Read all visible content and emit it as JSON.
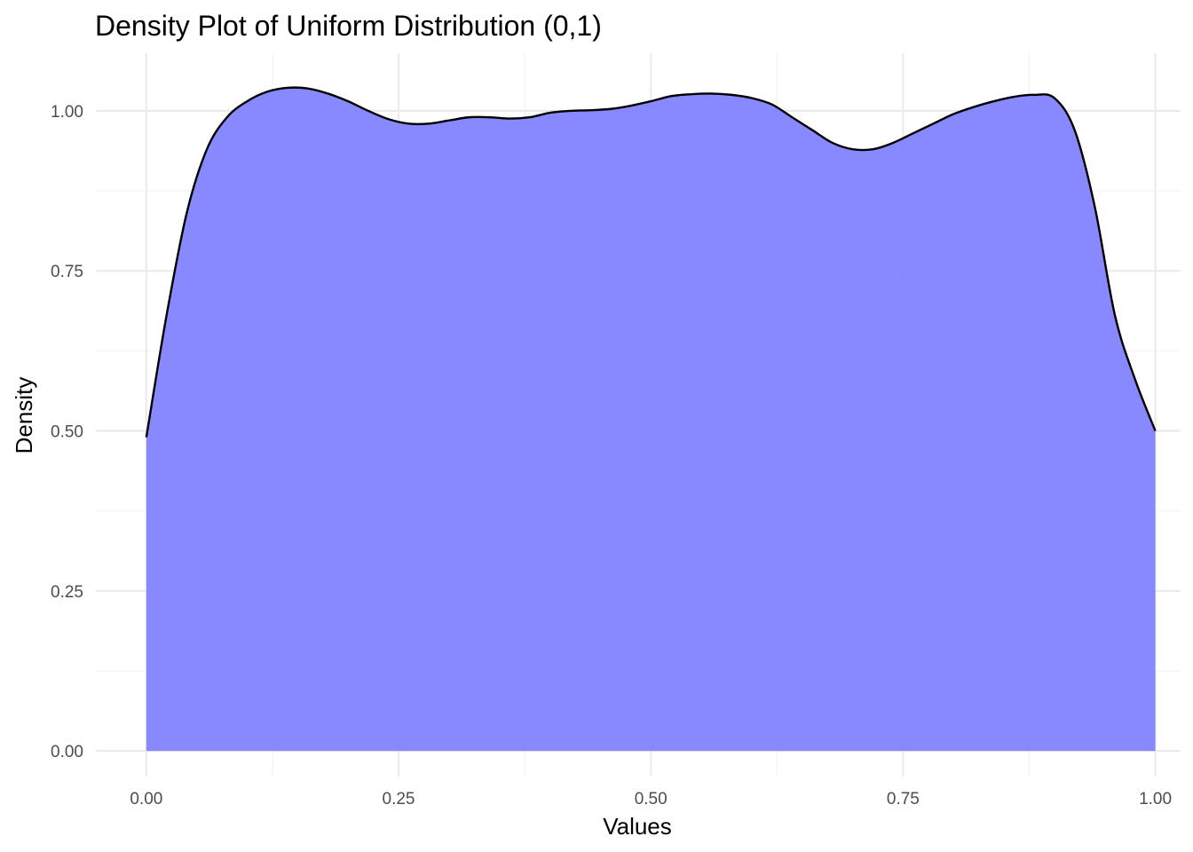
{
  "chart_data": {
    "type": "area",
    "title": "Density Plot of Uniform Distribution (0,1)",
    "xlabel": "Values",
    "ylabel": "Density",
    "xlim": [
      -0.05,
      1.025
    ],
    "ylim": [
      -0.04,
      1.09
    ],
    "x_ticks": [
      0,
      0.25,
      0.5,
      0.75,
      1
    ],
    "x_tick_labels": [
      "0.00",
      "0.25",
      "0.50",
      "0.75",
      "1.00"
    ],
    "y_ticks": [
      0,
      0.25,
      0.5,
      0.75,
      1
    ],
    "y_tick_labels": [
      "0.00",
      "0.25",
      "0.50",
      "0.75",
      "1.00"
    ],
    "grid": true,
    "legend": "none",
    "fill_color": "#8080ff",
    "line_color": "#000000",
    "series": [
      {
        "x": [
          0.0,
          0.02,
          0.04,
          0.06,
          0.08,
          0.1,
          0.12,
          0.14,
          0.16,
          0.18,
          0.2,
          0.22,
          0.24,
          0.26,
          0.28,
          0.3,
          0.32,
          0.34,
          0.36,
          0.38,
          0.4,
          0.42,
          0.44,
          0.46,
          0.48,
          0.5,
          0.52,
          0.54,
          0.56,
          0.58,
          0.6,
          0.62,
          0.64,
          0.66,
          0.68,
          0.7,
          0.72,
          0.74,
          0.76,
          0.78,
          0.8,
          0.82,
          0.84,
          0.86,
          0.88,
          0.9,
          0.92,
          0.94,
          0.96,
          0.98,
          1.0
        ],
        "y": [
          0.49,
          0.68,
          0.84,
          0.94,
          0.99,
          1.015,
          1.03,
          1.036,
          1.035,
          1.027,
          1.015,
          1.0,
          0.987,
          0.98,
          0.98,
          0.985,
          0.99,
          0.99,
          0.988,
          0.99,
          0.997,
          1.0,
          1.001,
          1.003,
          1.008,
          1.015,
          1.023,
          1.026,
          1.027,
          1.025,
          1.02,
          1.01,
          0.99,
          0.97,
          0.95,
          0.94,
          0.94,
          0.95,
          0.965,
          0.98,
          0.995,
          1.006,
          1.015,
          1.022,
          1.025,
          1.02,
          0.97,
          0.85,
          0.68,
          0.58,
          0.5
        ]
      }
    ]
  }
}
